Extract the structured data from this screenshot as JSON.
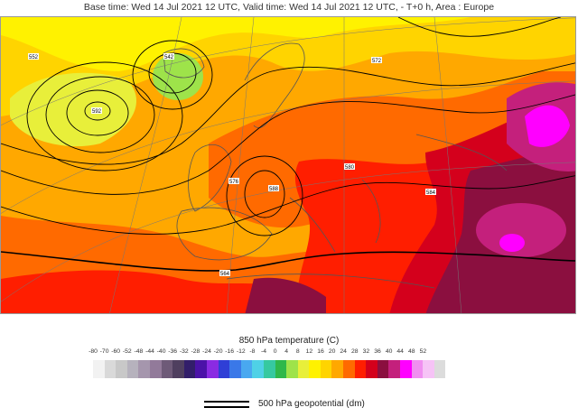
{
  "header": {
    "title": "Base time: Wed 14 Jul 2021 12 UTC, Valid time: Wed 14 Jul 2021 12 UTC, - T+0 h, Area : Europe"
  },
  "legend": {
    "temperature_title": "850 hPa temperature (C)",
    "scale": [
      {
        "label": "-80",
        "color": "#f2f2f2"
      },
      {
        "label": "-70",
        "color": "#d9d9d9"
      },
      {
        "label": "-60",
        "color": "#c8c8c8"
      },
      {
        "label": "-52",
        "color": "#b6b2bd"
      },
      {
        "label": "-48",
        "color": "#a596ad"
      },
      {
        "label": "-44",
        "color": "#927a9a"
      },
      {
        "label": "-40",
        "color": "#6e5a78"
      },
      {
        "label": "-36",
        "color": "#4f3f5f"
      },
      {
        "label": "-32",
        "color": "#321e6a"
      },
      {
        "label": "-28",
        "color": "#4b12a8"
      },
      {
        "label": "-24",
        "color": "#8a2be2"
      },
      {
        "label": "-20",
        "color": "#2f3fd6"
      },
      {
        "label": "-16",
        "color": "#3a78e8"
      },
      {
        "label": "-12",
        "color": "#49a8f0"
      },
      {
        "label": "-8",
        "color": "#4fd1e6"
      },
      {
        "label": "-4",
        "color": "#36c9a0"
      },
      {
        "label": "0",
        "color": "#2fb84a"
      },
      {
        "label": "4",
        "color": "#9ee34a"
      },
      {
        "label": "8",
        "color": "#e8ef3a"
      },
      {
        "label": "12",
        "color": "#fff200"
      },
      {
        "label": "16",
        "color": "#ffd400"
      },
      {
        "label": "20",
        "color": "#ffa800"
      },
      {
        "label": "24",
        "color": "#ff6a00"
      },
      {
        "label": "28",
        "color": "#ff1e00"
      },
      {
        "label": "32",
        "color": "#d4001c"
      },
      {
        "label": "36",
        "color": "#8b0f3f"
      },
      {
        "label": "40",
        "color": "#c4207c"
      },
      {
        "label": "44",
        "color": "#ff00ff"
      },
      {
        "label": "48",
        "color": "#f08ef0"
      },
      {
        "label": "52",
        "color": "#f6c3f6"
      },
      {
        "label": "",
        "color": "#dcdcdc"
      }
    ],
    "geopotential_label": "500 hPa geopotential (dm)"
  },
  "map": {
    "isoline_labels": [
      "542",
      "552",
      "564",
      "572",
      "576",
      "580",
      "584",
      "588",
      "592"
    ],
    "colors": {
      "sea_yellow": "#fff200",
      "orange": "#ffa800",
      "dark_orange": "#ff6a00",
      "red": "#ff1e00",
      "crimson": "#d4001c",
      "maroon": "#8b0f3f",
      "magenta": "#c4207c",
      "pink": "#ff00ff",
      "green": "#9ee34a",
      "light_yellow": "#e8ef3a"
    }
  }
}
